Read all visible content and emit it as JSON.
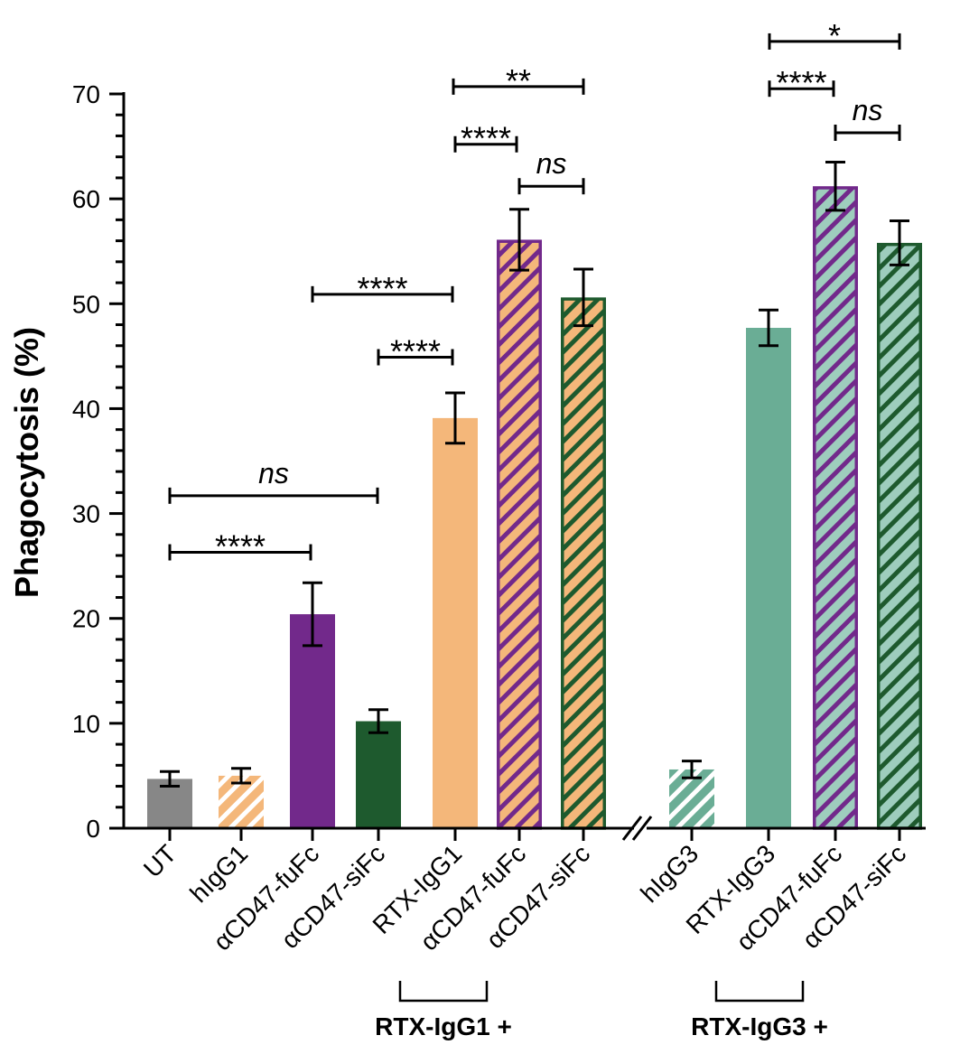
{
  "chart_data": {
    "type": "bar",
    "ylabel": "Phagocytosis (%)",
    "xlabel": "",
    "ylim": [
      0,
      70
    ],
    "yticks": [
      0,
      10,
      20,
      30,
      40,
      50,
      60,
      70
    ],
    "axis_break_after": "αCD47-siFc (RTX-IgG1 +)",
    "categories": [
      "UT",
      "hIgG1",
      "αCD47-fuFc",
      "αCD47-siFc",
      "RTX-IgG1",
      "αCD47-fuFc",
      "αCD47-siFc",
      "hIgG3",
      "RTX-IgG3",
      "αCD47-fuFc",
      "αCD47-siFc"
    ],
    "values": [
      4.7,
      5.0,
      20.4,
      10.2,
      39.1,
      56.1,
      50.6,
      5.6,
      47.7,
      61.2,
      55.8
    ],
    "errors": [
      0.7,
      0.7,
      3.0,
      1.1,
      2.4,
      2.9,
      2.7,
      0.8,
      1.7,
      2.3,
      2.1
    ],
    "group_labels": [
      {
        "label": "RTX-IgG1 +",
        "categories": [
          "αCD47-fuFc",
          "αCD47-siFc"
        ]
      },
      {
        "label": "RTX-IgG3 +",
        "categories": [
          "αCD47-fuFc",
          "αCD47-siFc"
        ]
      }
    ],
    "comparisons": [
      {
        "from": "UT",
        "to": "αCD47-fuFc",
        "label": "****",
        "y": 26.3
      },
      {
        "from": "UT",
        "to": "αCD47-siFc",
        "label": "ns",
        "y": 31.7
      },
      {
        "from": "RTX-IgG1",
        "to": "αCD47-siFc",
        "label": "****",
        "y": 44.9
      },
      {
        "from": "RTX-IgG1",
        "to": "αCD47-fuFc (hIgG1 group)",
        "label": "****",
        "y": 50.9
      },
      {
        "from": "αCD47-fuFc (RTX-IgG1 +)",
        "to": "αCD47-siFc (RTX-IgG1 +)",
        "label": "ns",
        "y": 61.2
      },
      {
        "from": "RTX-IgG1",
        "to": "αCD47-fuFc (RTX-IgG1 +)",
        "label": "****",
        "y": 65.2
      },
      {
        "from": "RTX-IgG1",
        "to": "αCD47-siFc (RTX-IgG1 +)",
        "label": "**",
        "y": 70.7
      },
      {
        "from": "αCD47-fuFc (RTX-IgG3 +)",
        "to": "αCD47-siFc (RTX-IgG3 +)",
        "label": "ns",
        "y": 66.3
      },
      {
        "from": "RTX-IgG3",
        "to": "αCD47-fuFc (RTX-IgG3 +)",
        "label": "****",
        "y": 70.5
      },
      {
        "from": "RTX-IgG3",
        "to": "αCD47-siFc (RTX-IgG3 +)",
        "label": "*",
        "y": 75.0
      }
    ],
    "styles": {
      "grey": "#878787",
      "orange": "#f4b77a",
      "purple": "#72298b",
      "dark_green": "#1e5a2e",
      "teal": "#6aad95",
      "light_teal": "#9ecdbd",
      "white": "#ffffff"
    },
    "bar_styles": [
      {
        "fill": "#878787",
        "hatch": "",
        "edge": ""
      },
      {
        "fill": "#f4b77a",
        "hatch": "#ffffff",
        "edge": ""
      },
      {
        "fill": "#72298b",
        "hatch": "",
        "edge": ""
      },
      {
        "fill": "#1e5a2e",
        "hatch": "",
        "edge": ""
      },
      {
        "fill": "#f4b77a",
        "hatch": "",
        "edge": ""
      },
      {
        "fill": "#f4b77a",
        "hatch": "#72298b",
        "edge": "#72298b"
      },
      {
        "fill": "#f4b77a",
        "hatch": "#1e5a2e",
        "edge": "#1e5a2e"
      },
      {
        "fill": "#6aad95",
        "hatch": "#ffffff",
        "edge": ""
      },
      {
        "fill": "#6aad95",
        "hatch": "",
        "edge": ""
      },
      {
        "fill": "#9ecdbd",
        "hatch": "#72298b",
        "edge": "#72298b"
      },
      {
        "fill": "#9ecdbd",
        "hatch": "#1e5a2e",
        "edge": "#1e5a2e"
      }
    ]
  }
}
